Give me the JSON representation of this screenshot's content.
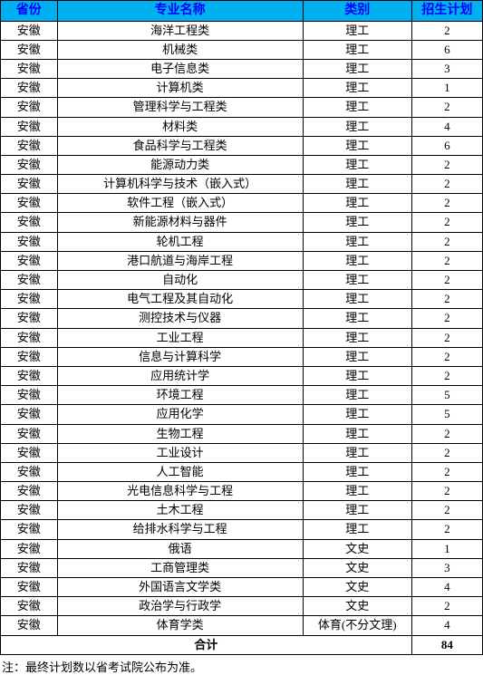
{
  "header": {
    "province": "省份",
    "major": "专业名称",
    "category": "类别",
    "plan": "招生计划"
  },
  "header_bg": "#00b0f0",
  "header_fg": "#0000ff",
  "border_color": "#000000",
  "rows": [
    {
      "province": "安徽",
      "major": "海洋工程类",
      "category": "理工",
      "plan": "2"
    },
    {
      "province": "安徽",
      "major": "机械类",
      "category": "理工",
      "plan": "6"
    },
    {
      "province": "安徽",
      "major": "电子信息类",
      "category": "理工",
      "plan": "3"
    },
    {
      "province": "安徽",
      "major": "计算机类",
      "category": "理工",
      "plan": "1"
    },
    {
      "province": "安徽",
      "major": "管理科学与工程类",
      "category": "理工",
      "plan": "2"
    },
    {
      "province": "安徽",
      "major": "材料类",
      "category": "理工",
      "plan": "4"
    },
    {
      "province": "安徽",
      "major": "食品科学与工程类",
      "category": "理工",
      "plan": "6"
    },
    {
      "province": "安徽",
      "major": "能源动力类",
      "category": "理工",
      "plan": "2"
    },
    {
      "province": "安徽",
      "major": "计算机科学与技术（嵌入式）",
      "category": "理工",
      "plan": "2"
    },
    {
      "province": "安徽",
      "major": "软件工程（嵌入式）",
      "category": "理工",
      "plan": "2"
    },
    {
      "province": "安徽",
      "major": "新能源材料与器件",
      "category": "理工",
      "plan": "2"
    },
    {
      "province": "安徽",
      "major": "轮机工程",
      "category": "理工",
      "plan": "2"
    },
    {
      "province": "安徽",
      "major": "港口航道与海岸工程",
      "category": "理工",
      "plan": "2"
    },
    {
      "province": "安徽",
      "major": "自动化",
      "category": "理工",
      "plan": "2"
    },
    {
      "province": "安徽",
      "major": "电气工程及其自动化",
      "category": "理工",
      "plan": "2"
    },
    {
      "province": "安徽",
      "major": "测控技术与仪器",
      "category": "理工",
      "plan": "2"
    },
    {
      "province": "安徽",
      "major": "工业工程",
      "category": "理工",
      "plan": "2"
    },
    {
      "province": "安徽",
      "major": "信息与计算科学",
      "category": "理工",
      "plan": "2"
    },
    {
      "province": "安徽",
      "major": "应用统计学",
      "category": "理工",
      "plan": "2"
    },
    {
      "province": "安徽",
      "major": "环境工程",
      "category": "理工",
      "plan": "5"
    },
    {
      "province": "安徽",
      "major": "应用化学",
      "category": "理工",
      "plan": "5"
    },
    {
      "province": "安徽",
      "major": "生物工程",
      "category": "理工",
      "plan": "2"
    },
    {
      "province": "安徽",
      "major": "工业设计",
      "category": "理工",
      "plan": "2"
    },
    {
      "province": "安徽",
      "major": "人工智能",
      "category": "理工",
      "plan": "2"
    },
    {
      "province": "安徽",
      "major": "光电信息科学与工程",
      "category": "理工",
      "plan": "2"
    },
    {
      "province": "安徽",
      "major": "土木工程",
      "category": "理工",
      "plan": "2"
    },
    {
      "province": "安徽",
      "major": "给排水科学与工程",
      "category": "理工",
      "plan": "2"
    },
    {
      "province": "安徽",
      "major": "俄语",
      "category": "文史",
      "plan": "1"
    },
    {
      "province": "安徽",
      "major": "工商管理类",
      "category": "文史",
      "plan": "3"
    },
    {
      "province": "安徽",
      "major": "外国语言文学类",
      "category": "文史",
      "plan": "4"
    },
    {
      "province": "安徽",
      "major": "政治学与行政学",
      "category": "文史",
      "plan": "2"
    },
    {
      "province": "安徽",
      "major": "体育学类",
      "category": "体育(不分文理)",
      "plan": "4"
    }
  ],
  "total": {
    "label": "合计",
    "value": "84"
  },
  "note": "注：最终计划数以省考试院公布为准。"
}
